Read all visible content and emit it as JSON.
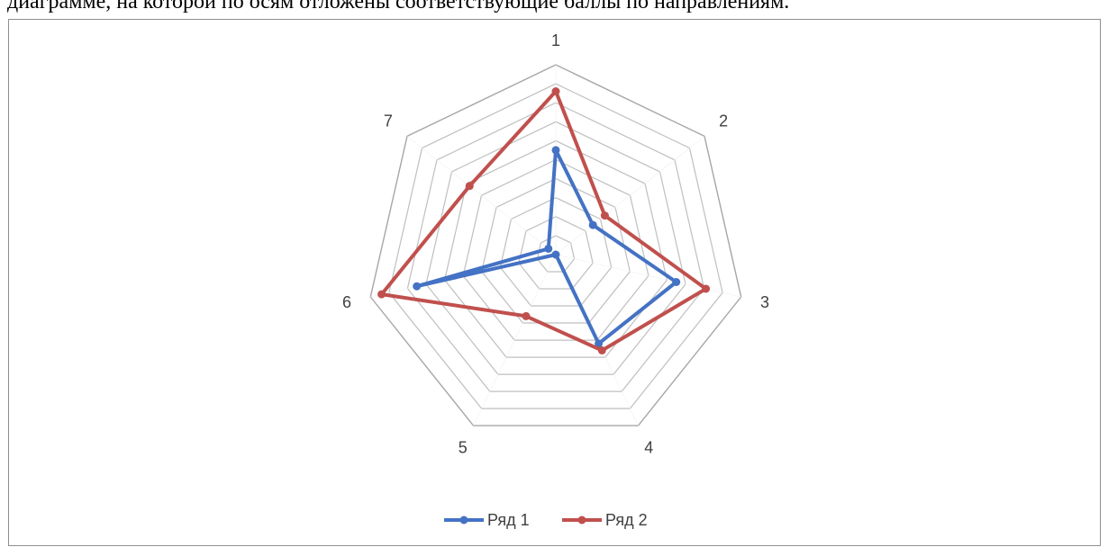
{
  "page": {
    "caption": "диаграмме, на которой по осям отложены соответствующие баллы по направлениям."
  },
  "chart_data": {
    "type": "radar",
    "categories": [
      "1",
      "2",
      "3",
      "4",
      "5",
      "6",
      "7"
    ],
    "rmax": 10,
    "rings": 10,
    "legend_position": "bottom",
    "series": [
      {
        "name": "Ряд 1",
        "color": "#4472c4",
        "values": [
          5.5,
          2.5,
          6.5,
          5.2,
          0,
          7.5,
          0.5
        ]
      },
      {
        "name": "Ряд 2",
        "color": "#c0504d",
        "values": [
          8.6,
          3.3,
          8.1,
          5.6,
          3.6,
          9.4,
          5.8
        ]
      }
    ]
  }
}
